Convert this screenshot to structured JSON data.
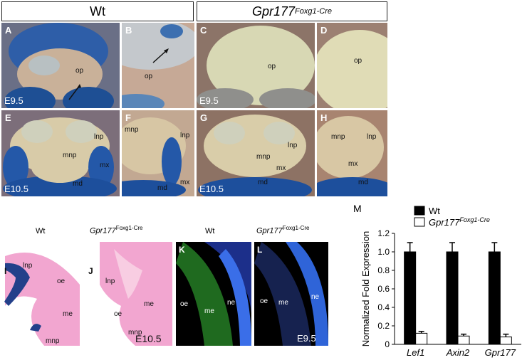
{
  "headers": {
    "wt": "Wt",
    "mut_main": "Gpr177",
    "mut_sup": "Foxg1-Cre"
  },
  "panels": {
    "A": {
      "label": "A",
      "stage": "E9.5",
      "ann": [
        "op"
      ]
    },
    "B": {
      "label": "B",
      "ann": [
        "op"
      ]
    },
    "C": {
      "label": "C",
      "stage": "E9.5",
      "ann": [
        "op"
      ]
    },
    "D": {
      "label": "D",
      "ann": [
        "op"
      ]
    },
    "E": {
      "label": "E",
      "stage": "E10.5",
      "ann": [
        "lnp",
        "mnp",
        "mx",
        "md"
      ]
    },
    "F": {
      "label": "F",
      "ann": [
        "mnp",
        "lnp",
        "mx",
        "md"
      ]
    },
    "G": {
      "label": "G",
      "stage": "E10.5",
      "ann": [
        "lnp",
        "mnp",
        "mx",
        "md"
      ]
    },
    "H": {
      "label": "H",
      "ann": [
        "mnp",
        "lnp",
        "mx",
        "md"
      ]
    },
    "I": {
      "label": "I",
      "title": "Wt",
      "ann": [
        "lnp",
        "oe",
        "me",
        "mnp"
      ]
    },
    "J": {
      "label": "J",
      "title_main": "Gpr177",
      "title_sup": "Foxg1-Cre",
      "stage": "E10.5",
      "ann": [
        "lnp",
        "oe",
        "me",
        "mnp"
      ]
    },
    "K": {
      "label": "K",
      "title": "Wt",
      "ann": [
        "oe",
        "me",
        "ne"
      ]
    },
    "L": {
      "label": "L",
      "title_main": "Gpr177",
      "title_sup": "Foxg1-Cre",
      "stage": "E9.5",
      "ann": [
        "oe",
        "me",
        "ne"
      ]
    }
  },
  "chart_data": {
    "type": "bar",
    "panel_label": "M",
    "categories": [
      "Lef1",
      "Axin2",
      "Gpr177"
    ],
    "series": [
      {
        "name": "Wt",
        "values": [
          1.0,
          1.0,
          1.0
        ],
        "errors": [
          0.1,
          0.1,
          0.1
        ],
        "color": "#000000"
      },
      {
        "name": "Gpr177 Foxg1-Cre",
        "name_main": "Gpr177",
        "name_sup": "Foxg1-Cre",
        "values": [
          0.12,
          0.09,
          0.08
        ],
        "errors": [
          0.02,
          0.02,
          0.03
        ],
        "color": "#ffffff"
      }
    ],
    "ylabel": "Normalized Fold Expression",
    "ylim": [
      0,
      1.2
    ],
    "yticks": [
      "0",
      "0.2",
      "0.4",
      "0.6",
      "0.8",
      "1.0",
      "1.2"
    ],
    "legend_position": "top-right",
    "grid": false
  }
}
